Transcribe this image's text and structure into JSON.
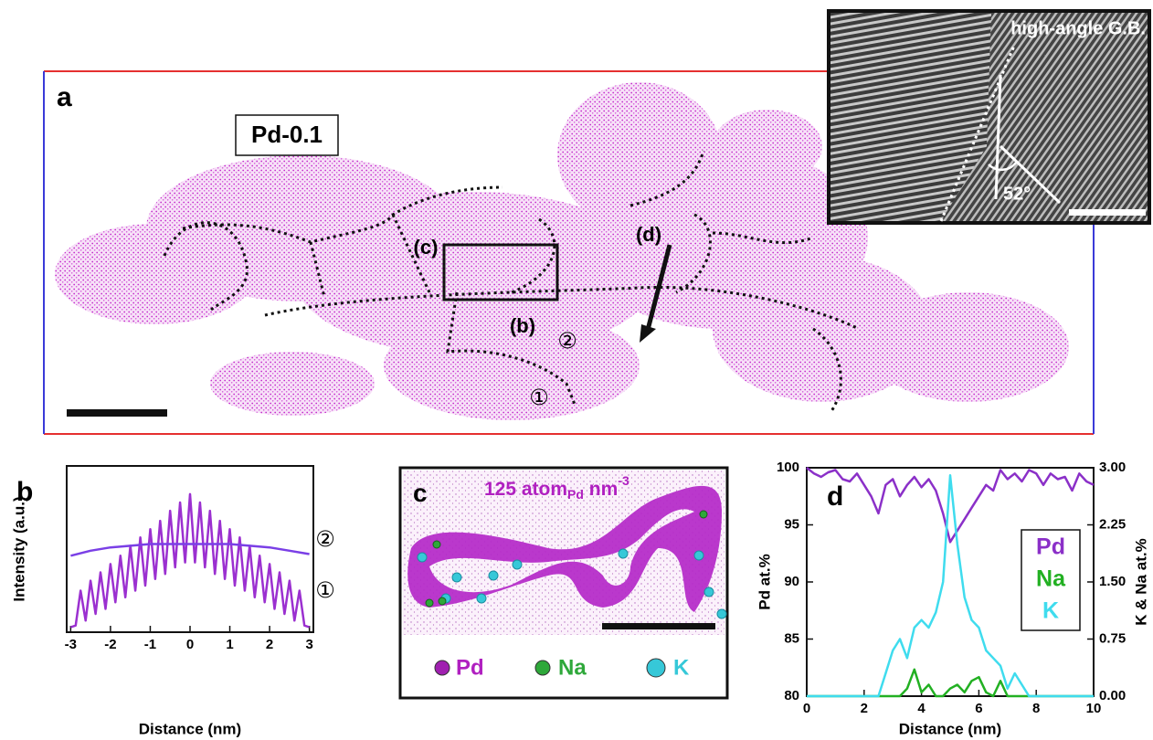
{
  "panel_a": {
    "label": "a",
    "sample": "Pd-0.1",
    "markers": {
      "c": "(c)",
      "d": "(d)",
      "b": "(b)",
      "one": "①",
      "two": "②"
    }
  },
  "inset": {
    "title": "high-angle G.B.",
    "angle": "52°"
  },
  "panel_c": {
    "label": "c",
    "density": {
      "main": "125 atom",
      "sub": "Pd",
      "unit": " nm",
      "sup": "-3"
    },
    "legend": [
      "Pd",
      "Na",
      "K"
    ]
  },
  "chart_data": [
    {
      "type": "line",
      "label": "b",
      "xlabel": "Distance (nm)",
      "ylabel": "Intensity (a.u.)",
      "xlim": [
        -3.1,
        3.1
      ],
      "ylim": [
        0,
        1
      ],
      "xticks": [
        -3,
        -2,
        -1,
        0,
        1,
        2,
        3
      ],
      "series": [
        {
          "name": "①",
          "color": "#9b30d0",
          "x": [
            -3,
            -2.875,
            -2.75,
            -2.625,
            -2.5,
            -2.375,
            -2.25,
            -2.125,
            -2,
            -1.875,
            -1.75,
            -1.625,
            -1.5,
            -1.375,
            -1.25,
            -1.125,
            -1,
            -0.875,
            -0.75,
            -0.625,
            -0.5,
            -0.375,
            -0.25,
            -0.125,
            0,
            0.125,
            0.25,
            0.375,
            0.5,
            0.625,
            0.75,
            0.875,
            1,
            1.125,
            1.25,
            1.375,
            1.5,
            1.625,
            1.75,
            1.875,
            2,
            2.125,
            2.25,
            2.375,
            2.5,
            2.625,
            2.75,
            2.875,
            3
          ],
          "values": [
            0.03,
            0.04,
            0.25,
            0.07,
            0.31,
            0.11,
            0.36,
            0.14,
            0.41,
            0.18,
            0.46,
            0.21,
            0.52,
            0.25,
            0.57,
            0.28,
            0.62,
            0.32,
            0.67,
            0.35,
            0.73,
            0.39,
            0.78,
            0.42,
            0.83,
            0.42,
            0.78,
            0.39,
            0.73,
            0.35,
            0.67,
            0.32,
            0.62,
            0.28,
            0.57,
            0.25,
            0.52,
            0.21,
            0.46,
            0.18,
            0.41,
            0.14,
            0.36,
            0.11,
            0.31,
            0.07,
            0.25,
            0.04,
            0.03
          ]
        },
        {
          "name": "②",
          "color": "#7a3fe6",
          "x": [
            -3,
            -2.5,
            -2,
            -1.5,
            -1,
            -0.5,
            0,
            0.5,
            1,
            1.5,
            2,
            2.5,
            3
          ],
          "values": [
            0.46,
            0.49,
            0.51,
            0.52,
            0.53,
            0.53,
            0.53,
            0.53,
            0.53,
            0.52,
            0.51,
            0.49,
            0.47
          ]
        }
      ]
    },
    {
      "type": "line",
      "label": "d",
      "xlabel": "Distance (nm)",
      "ylabel": "Pd at.%",
      "y2label": "K & Na at.%",
      "xlim": [
        0,
        10
      ],
      "xticks": [
        0,
        2,
        4,
        6,
        8,
        10
      ],
      "ylim": [
        80,
        100
      ],
      "yticks": [
        80,
        85,
        90,
        95,
        100
      ],
      "y2lim": [
        0,
        3
      ],
      "y2ticks": [
        {
          "value": 0,
          "label": "0.00"
        },
        {
          "value": 0.75,
          "label": "0.75"
        },
        {
          "value": 1.5,
          "label": "1.50"
        },
        {
          "value": 2.25,
          "label": "2.25"
        },
        {
          "value": 3,
          "label": "3.00"
        }
      ],
      "legend": "right",
      "x": [
        0,
        0.25,
        0.5,
        0.75,
        1,
        1.25,
        1.5,
        1.75,
        2,
        2.25,
        2.5,
        2.75,
        3,
        3.25,
        3.5,
        3.75,
        4,
        4.25,
        4.5,
        4.75,
        5,
        5.25,
        5.5,
        5.75,
        6,
        6.25,
        6.5,
        6.75,
        7,
        7.25,
        7.5,
        7.75,
        8,
        8.25,
        8.5,
        8.75,
        9,
        9.25,
        9.5,
        9.75,
        10
      ],
      "series": [
        {
          "name": "Pd",
          "color": "#8b30c8",
          "values": [
            100,
            99.5,
            99.2,
            99.6,
            99.8,
            99.0,
            98.8,
            99.5,
            98.5,
            97.5,
            96.0,
            98.5,
            99.0,
            97.5,
            98.5,
            99.2,
            98.3,
            99.0,
            98.0,
            96.0,
            93.5,
            94.5,
            95.5,
            96.5,
            97.5,
            98.5,
            98.0,
            99.8,
            99.0,
            99.5,
            98.8,
            99.8,
            99.5,
            98.5,
            99.5,
            99.0,
            99.2,
            98.0,
            99.5,
            98.8,
            98.5
          ]
        },
        {
          "name": "Na",
          "color": "#22b022",
          "axis": "y2",
          "values": [
            0,
            0,
            0,
            0,
            0,
            0,
            0,
            0,
            0,
            0,
            0,
            0,
            0,
            0,
            0.1,
            0.35,
            0.05,
            0.15,
            0,
            0,
            0.1,
            0.15,
            0.05,
            0.2,
            0.25,
            0.05,
            0,
            0.2,
            0,
            0,
            0,
            0,
            0,
            0,
            0,
            0,
            0,
            0,
            0,
            0,
            0
          ]
        },
        {
          "name": "K",
          "color": "#3fdcee",
          "axis": "y2",
          "values": [
            0,
            0,
            0,
            0,
            0,
            0,
            0,
            0,
            0,
            0,
            0,
            0.3,
            0.6,
            0.75,
            0.5,
            0.9,
            1.0,
            0.9,
            1.1,
            1.5,
            2.9,
            2.0,
            1.3,
            1.0,
            0.9,
            0.6,
            0.5,
            0.4,
            0.1,
            0.3,
            0.15,
            0,
            0,
            0,
            0,
            0,
            0,
            0,
            0,
            0,
            0
          ]
        }
      ]
    }
  ]
}
